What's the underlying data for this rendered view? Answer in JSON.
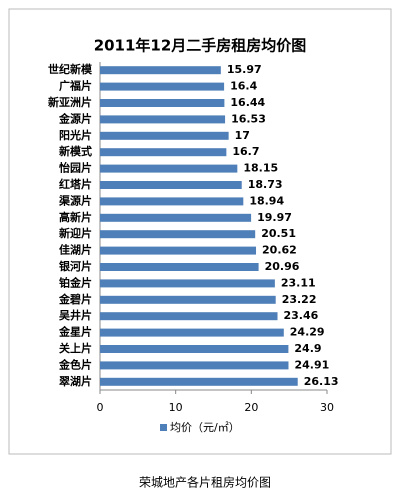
{
  "chart_data": {
    "type": "hbar",
    "title": "2011年12月二手房租房均价图",
    "categories": [
      "世纪新模",
      "广福片",
      "新亚洲片",
      "金源片",
      "阳光片",
      "新模式",
      "怡园片",
      "红塔片",
      "渠源片",
      "高新片",
      "新迎片",
      "佳湖片",
      "银河片",
      "铂金片",
      "金碧片",
      "吴井片",
      "金星片",
      "关上片",
      "金色片",
      "翠湖片"
    ],
    "series": [
      {
        "name": "均价（元/㎡）",
        "color": "#4f7fb8",
        "values": [
          15.97,
          16.4,
          16.44,
          16.53,
          17,
          16.7,
          18.15,
          18.73,
          18.94,
          19.97,
          20.51,
          20.62,
          20.96,
          23.11,
          23.22,
          23.46,
          24.29,
          24.9,
          24.91,
          26.13
        ]
      }
    ],
    "xlim": [
      0,
      30
    ],
    "xticks": [
      0,
      10,
      20,
      30
    ],
    "grid": false,
    "caption": "荣城地产各片租房均价图"
  }
}
